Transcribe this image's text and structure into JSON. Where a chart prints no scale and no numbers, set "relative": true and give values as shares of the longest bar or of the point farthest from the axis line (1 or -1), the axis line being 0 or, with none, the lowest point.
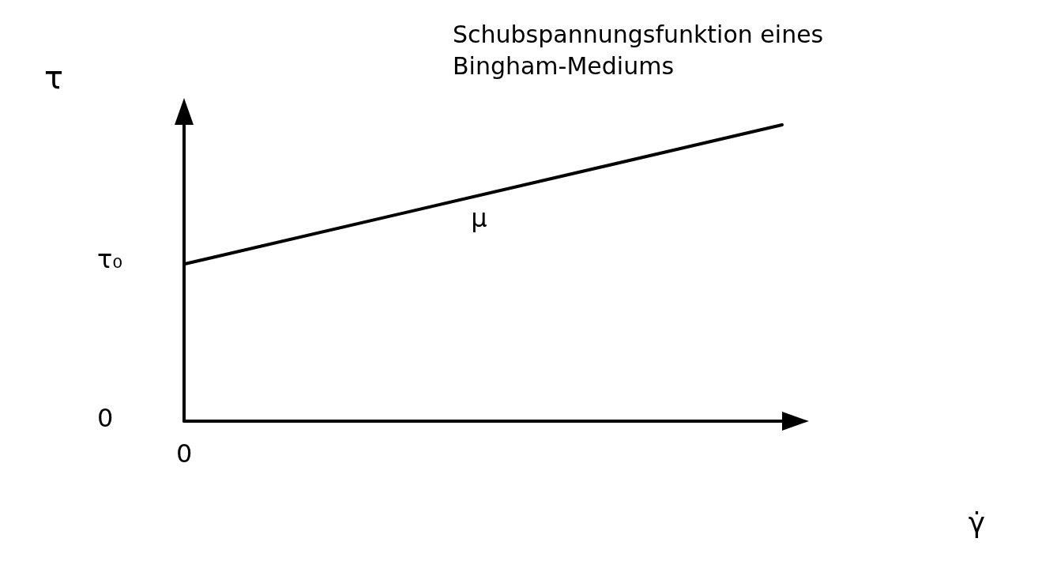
{
  "chart_data": {
    "type": "line",
    "title": "Schubspannungsfunktion eines Bingham-Mediums",
    "xlabel": "γ̇",
    "ylabel": "τ",
    "relative": true,
    "categories": [
      null,
      null
    ],
    "series": [
      {
        "color": "#000000",
        "values": [
          0.53,
          1
        ]
      }
    ],
    "annotations": [
      "0",
      "τ₀",
      "0",
      "μ"
    ],
    "marker": "none",
    "grid": false
  }
}
